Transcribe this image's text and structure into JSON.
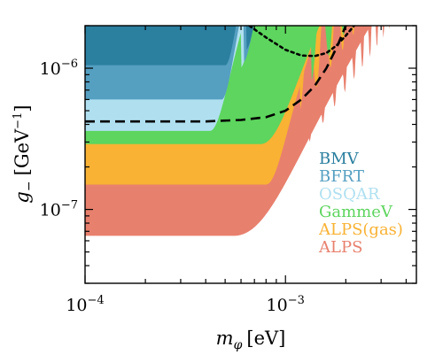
{
  "chart_data": {
    "type": "area",
    "xscale": "log",
    "yscale": "log",
    "xlim": [
      0.0001,
      0.0045
    ],
    "ylim": [
      3e-08,
      2e-06
    ],
    "xlabel": {
      "main": "m",
      "sub": "φ",
      "unit": "[eV]"
    },
    "ylabel": {
      "main": "g",
      "sub": "−",
      "unit": "[GeV",
      "unit_exp": "−1",
      "unit_close": "]"
    },
    "xticks": [
      {
        "value": 0.0001,
        "base": "10",
        "exp": "−4"
      },
      {
        "value": 0.001,
        "base": "10",
        "exp": "−3"
      }
    ],
    "yticks": [
      {
        "value": 1e-07,
        "base": "10",
        "exp": "−7"
      },
      {
        "value": 1e-06,
        "base": "10",
        "exp": "−6"
      }
    ],
    "legend_position": "lower-right",
    "series": [
      {
        "name": "ALPS",
        "color": "#E8806E",
        "floor": 6.5e-08,
        "m_start": 0.00055,
        "dip": 0.00132,
        "dip_val": 3e-07,
        "spacing": 0.00022
      },
      {
        "name": "ALPS(gas)",
        "color": "#F9B233",
        "floor": 1.5e-07,
        "m_start": 0.0008,
        "dip": 0.00118,
        "dip_val": 5e-07,
        "spacing": 0.00025
      },
      {
        "name": "GammeV",
        "color": "#5DD55E",
        "floor": 2.9e-07,
        "m_start": 0.00075,
        "dip": 0.00135,
        "dip_val": 8.2e-07,
        "spacing": 0.0003
      },
      {
        "name": "OSQAR",
        "color": "#B0E0F0",
        "floor": 3.6e-07,
        "m_start": 0.00042,
        "dip": 0.0006,
        "dip_val": 1e-06,
        "spacing": 0.0004
      },
      {
        "name": "BFRT",
        "color": "#559FC1",
        "floor": 6e-07,
        "m_start": 0.00048,
        "dip": 0.00062,
        "dip_val": 1.1e-06,
        "spacing": 0.0004
      },
      {
        "name": "BMV",
        "color": "#2B7F9F",
        "floor": 1.05e-06,
        "m_start": 0.0005,
        "dip": 0.00064,
        "dip_val": 1.35e-06,
        "spacing": 0.0004
      }
    ],
    "curves": [
      {
        "style": "dashed",
        "points": [
          [
            0.0001,
            4.2e-07
          ],
          [
            0.0004,
            4.2e-07
          ],
          [
            0.0006,
            4.3e-07
          ],
          [
            0.0008,
            4.5e-07
          ],
          [
            0.001,
            5e-07
          ],
          [
            0.0012,
            6e-07
          ],
          [
            0.0014,
            7.5e-07
          ],
          [
            0.0016,
            1e-06
          ],
          [
            0.0018,
            1.4e-06
          ],
          [
            0.002,
            2e-06
          ]
        ]
      },
      {
        "style": "dotted",
        "points": [
          [
            0.00066,
            2e-06
          ],
          [
            0.0008,
            1.65e-06
          ],
          [
            0.001,
            1.35e-06
          ],
          [
            0.0012,
            1.23e-06
          ],
          [
            0.0014,
            1.22e-06
          ],
          [
            0.0016,
            1.28e-06
          ],
          [
            0.0018,
            1.45e-06
          ],
          [
            0.002,
            1.7e-06
          ],
          [
            0.0022,
            2e-06
          ]
        ]
      }
    ]
  }
}
